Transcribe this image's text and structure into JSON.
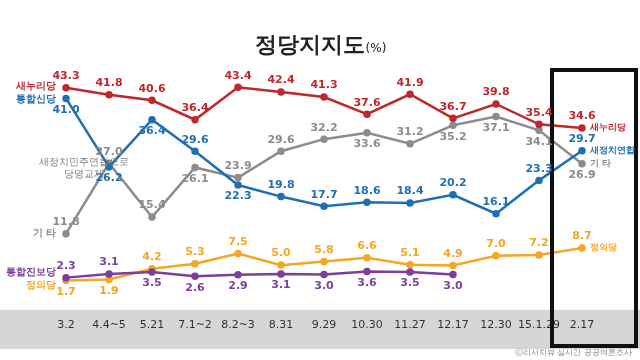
{
  "chart_data": {
    "type": "line",
    "title": "정당지지도(%)",
    "source": "ⓒ리서치뷰 실시간 공공여론조사",
    "annotations": [
      "새정치민주연합으로 당명교체"
    ],
    "categories": [
      "3.2",
      "4.4~5",
      "5.21",
      "7.1~2",
      "8.2~3",
      "8.31",
      "9.29",
      "10.30",
      "11.27",
      "12.17",
      "12.30",
      "15.1.29",
      "2.17"
    ],
    "ylim": [
      -4,
      48
    ],
    "tick_labels": "x",
    "grid": false,
    "data_labels": true,
    "series": [
      {
        "name": "새누리당",
        "end_label": "새누리당",
        "color": "#c0272d",
        "marker": "circle",
        "values": [
          43.3,
          41.8,
          40.6,
          36.4,
          43.4,
          42.4,
          41.3,
          37.6,
          41.9,
          36.7,
          39.8,
          35.4,
          34.6
        ],
        "value_labels": [
          "43.3",
          "41.8",
          "40.6",
          "36.4",
          "43.4",
          "42.4",
          "41.3",
          "37.6",
          "41.9",
          "36.7",
          "39.8",
          "35.4",
          "34.6"
        ]
      },
      {
        "name": "통합신당",
        "end_label": "새정치연합",
        "color": "#1f6fb2",
        "marker": "circle",
        "values": [
          41.0,
          26.2,
          36.4,
          29.6,
          22.3,
          19.8,
          17.7,
          18.6,
          18.4,
          20.2,
          16.1,
          23.3,
          29.7
        ],
        "value_labels": [
          "41.0",
          "26.2",
          "36.4",
          "29.6",
          "22.3",
          "19.8",
          "17.7",
          "18.6",
          "18.4",
          "20.2",
          "16.1",
          "23.3",
          "29.7"
        ]
      },
      {
        "name": "기 타",
        "end_label": "기 타",
        "color": "#8c8c8c",
        "marker": "circle",
        "values": [
          11.8,
          27.0,
          15.4,
          26.1,
          23.9,
          29.6,
          32.2,
          33.6,
          31.2,
          35.2,
          37.1,
          34.1,
          26.9
        ],
        "value_labels": [
          "11.8",
          "27.0",
          "15.4",
          "26.1",
          "23.9",
          "29.6",
          "32.2",
          "33.6",
          "31.2",
          "35.2",
          "37.1",
          "34.1",
          "26.9"
        ]
      },
      {
        "name": "통합진보당",
        "color": "#7b3fa0",
        "marker": "circle",
        "values": [
          2.3,
          3.1,
          3.5,
          2.6,
          2.9,
          3.1,
          3.0,
          3.6,
          3.5,
          3.0,
          null,
          null,
          null
        ],
        "value_labels": [
          "2.3",
          "3.1",
          "3.5",
          "2.6",
          "2.9",
          "3.1",
          "3.0",
          "3.6",
          "3.5",
          "3.0",
          null,
          null,
          null
        ]
      },
      {
        "name": "정의당",
        "end_label": "정의당",
        "color": "#f5a623",
        "marker": "circle",
        "values": [
          1.7,
          1.9,
          4.2,
          5.3,
          7.5,
          5.0,
          5.8,
          6.6,
          5.1,
          4.9,
          7.0,
          7.2,
          8.7
        ],
        "value_labels": [
          "1.7",
          "1.9",
          "4.2",
          "5.3",
          "7.5",
          "5.0",
          "5.8",
          "6.6",
          "5.1",
          "4.9",
          "7.0",
          "7.2",
          "8.7"
        ]
      }
    ]
  }
}
